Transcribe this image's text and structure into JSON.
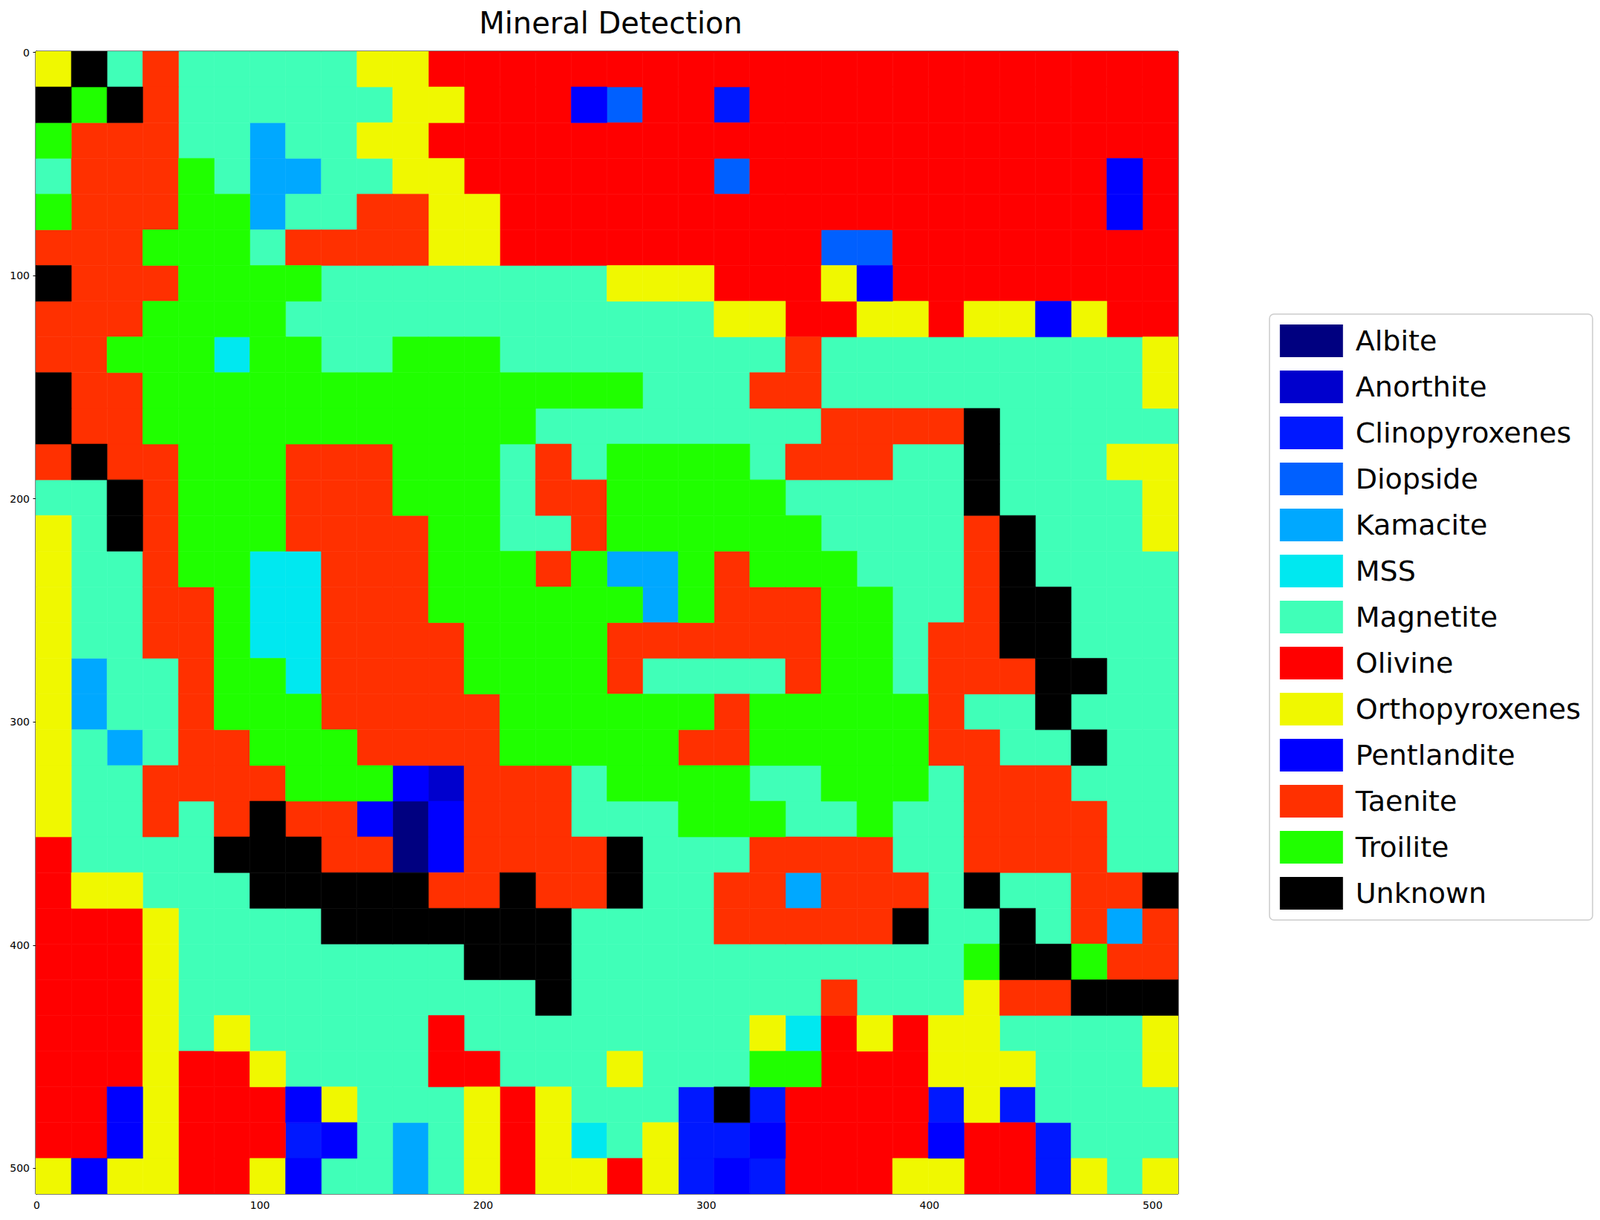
{
  "chart_data": {
    "type": "heatmap",
    "title": "Mineral Detection",
    "categories": [
      "Albite",
      "Anorthite",
      "Clinopyroxenes",
      "Diopside",
      "Kamacite",
      "MSS",
      "Magnetite",
      "Olivine",
      "Orthopyroxenes",
      "Pentlandite",
      "Taenite",
      "Troilite",
      "Unknown"
    ],
    "colors": [
      "#000080",
      "#0000cd",
      "#0018ff",
      "#0060ff",
      "#00a8ff",
      "#00e8f0",
      "#40ffb8",
      "#ff0000",
      "#f0f800",
      "#0000ff",
      "#ff3000",
      "#20ff00",
      "#000000"
    ],
    "x_edges": [
      -0.5,
      15.5,
      31.5,
      47.5,
      63.5,
      79.5,
      95.5,
      111.5,
      127.5,
      143.5,
      159.5,
      175.5,
      191.5,
      207.5,
      223.5,
      239.5,
      255.5,
      271.5,
      287.5,
      303.5,
      319.5,
      335.5,
      351.5,
      367.5,
      383.5,
      399.5,
      415.5,
      431.5,
      447.5,
      463.5,
      479.5,
      495.5,
      511.5
    ],
    "y_edges": [
      -0.5,
      15.5,
      31.5,
      47.5,
      63.5,
      79.5,
      95.5,
      111.5,
      127.5,
      143.5,
      159.5,
      175.5,
      191.5,
      207.5,
      223.5,
      239.5,
      255.5,
      271.5,
      287.5,
      303.5,
      319.5,
      335.5,
      351.5,
      367.5,
      383.5,
      399.5,
      415.5,
      431.5,
      447.5,
      463.5,
      479.5,
      495.5,
      511.5
    ],
    "cells": [
      [
        8,
        12,
        6,
        10,
        6,
        6,
        6,
        6,
        6,
        8,
        8,
        7,
        7,
        7,
        7,
        7,
        7,
        7,
        7,
        7,
        7,
        7,
        7,
        7,
        7,
        7,
        7,
        7,
        7,
        7,
        7,
        7
      ],
      [
        12,
        11,
        12,
        10,
        6,
        6,
        6,
        6,
        6,
        6,
        8,
        8,
        7,
        7,
        7,
        9,
        3,
        7,
        7,
        2,
        7,
        7,
        7,
        7,
        7,
        7,
        7,
        7,
        7,
        7,
        7,
        7
      ],
      [
        11,
        10,
        10,
        10,
        6,
        6,
        4,
        6,
        6,
        8,
        8,
        7,
        7,
        7,
        7,
        7,
        7,
        7,
        7,
        7,
        7,
        7,
        7,
        7,
        7,
        7,
        7,
        7,
        7,
        7,
        7,
        7
      ],
      [
        6,
        10,
        10,
        10,
        11,
        6,
        4,
        4,
        6,
        6,
        8,
        8,
        7,
        7,
        7,
        7,
        7,
        7,
        7,
        3,
        7,
        7,
        7,
        7,
        7,
        7,
        7,
        7,
        7,
        7,
        9,
        7
      ],
      [
        11,
        10,
        10,
        10,
        11,
        11,
        4,
        6,
        6,
        10,
        10,
        8,
        8,
        7,
        7,
        7,
        7,
        7,
        7,
        7,
        7,
        7,
        7,
        7,
        7,
        7,
        7,
        7,
        7,
        7,
        9,
        7
      ],
      [
        10,
        10,
        10,
        11,
        11,
        11,
        6,
        10,
        10,
        10,
        10,
        8,
        8,
        7,
        7,
        7,
        7,
        7,
        7,
        7,
        7,
        7,
        3,
        3,
        7,
        7,
        7,
        7,
        7,
        7,
        7,
        7
      ],
      [
        12,
        10,
        10,
        10,
        11,
        11,
        11,
        11,
        6,
        6,
        6,
        6,
        6,
        6,
        6,
        6,
        8,
        8,
        8,
        7,
        7,
        7,
        8,
        9,
        7,
        7,
        7,
        7,
        7,
        7,
        7,
        7
      ],
      [
        10,
        10,
        10,
        11,
        11,
        11,
        11,
        6,
        6,
        6,
        6,
        6,
        6,
        6,
        6,
        6,
        6,
        6,
        6,
        8,
        8,
        7,
        7,
        8,
        8,
        7,
        8,
        8,
        9,
        8,
        7,
        7
      ],
      [
        10,
        10,
        11,
        11,
        11,
        5,
        11,
        11,
        6,
        6,
        11,
        11,
        11,
        6,
        6,
        6,
        6,
        6,
        6,
        6,
        6,
        10,
        6,
        6,
        6,
        6,
        6,
        6,
        6,
        6,
        6,
        8
      ],
      [
        12,
        10,
        10,
        11,
        11,
        11,
        11,
        11,
        11,
        11,
        11,
        11,
        11,
        11,
        11,
        11,
        11,
        6,
        6,
        6,
        10,
        10,
        6,
        6,
        6,
        6,
        6,
        6,
        6,
        6,
        6,
        8
      ],
      [
        12,
        10,
        10,
        11,
        11,
        11,
        11,
        11,
        11,
        11,
        11,
        11,
        11,
        11,
        6,
        6,
        6,
        6,
        6,
        6,
        6,
        6,
        10,
        10,
        10,
        10,
        12,
        6,
        6,
        6,
        6,
        6
      ],
      [
        10,
        12,
        10,
        10,
        11,
        11,
        11,
        10,
        10,
        10,
        11,
        11,
        11,
        6,
        10,
        6,
        11,
        11,
        11,
        11,
        6,
        10,
        10,
        10,
        6,
        6,
        12,
        6,
        6,
        6,
        8,
        8
      ],
      [
        6,
        6,
        12,
        10,
        11,
        11,
        11,
        10,
        10,
        10,
        11,
        11,
        11,
        6,
        10,
        10,
        11,
        11,
        11,
        11,
        11,
        6,
        6,
        6,
        6,
        6,
        12,
        6,
        6,
        6,
        6,
        8
      ],
      [
        8,
        6,
        12,
        10,
        11,
        11,
        11,
        10,
        10,
        10,
        10,
        11,
        11,
        6,
        6,
        10,
        11,
        11,
        11,
        11,
        11,
        11,
        6,
        6,
        6,
        6,
        10,
        12,
        6,
        6,
        6,
        8
      ],
      [
        8,
        6,
        6,
        10,
        11,
        11,
        5,
        5,
        10,
        10,
        10,
        11,
        11,
        11,
        10,
        11,
        4,
        4,
        11,
        10,
        11,
        11,
        11,
        6,
        6,
        6,
        10,
        12,
        6,
        6,
        6,
        6
      ],
      [
        8,
        6,
        6,
        10,
        10,
        11,
        5,
        5,
        10,
        10,
        10,
        11,
        11,
        11,
        11,
        11,
        11,
        4,
        11,
        10,
        10,
        10,
        11,
        11,
        6,
        6,
        10,
        12,
        12,
        6,
        6,
        6
      ],
      [
        8,
        6,
        6,
        10,
        10,
        11,
        5,
        5,
        10,
        10,
        10,
        10,
        11,
        11,
        11,
        11,
        10,
        10,
        10,
        10,
        10,
        10,
        11,
        11,
        6,
        10,
        10,
        12,
        12,
        6,
        6,
        6
      ],
      [
        8,
        4,
        6,
        6,
        10,
        11,
        11,
        5,
        10,
        10,
        10,
        10,
        11,
        11,
        11,
        11,
        10,
        6,
        6,
        6,
        6,
        10,
        11,
        11,
        6,
        10,
        10,
        10,
        12,
        12,
        6,
        6
      ],
      [
        8,
        4,
        6,
        6,
        10,
        11,
        11,
        11,
        10,
        10,
        10,
        10,
        10,
        11,
        11,
        11,
        11,
        11,
        11,
        10,
        11,
        11,
        11,
        11,
        11,
        10,
        6,
        6,
        12,
        6,
        6,
        6
      ],
      [
        8,
        6,
        4,
        6,
        10,
        10,
        11,
        11,
        11,
        10,
        10,
        10,
        10,
        11,
        11,
        11,
        11,
        11,
        10,
        10,
        11,
        11,
        11,
        11,
        11,
        10,
        10,
        6,
        6,
        12,
        6,
        6
      ],
      [
        8,
        6,
        6,
        10,
        10,
        10,
        10,
        11,
        11,
        11,
        9,
        1,
        10,
        10,
        10,
        6,
        11,
        11,
        11,
        11,
        6,
        6,
        11,
        11,
        11,
        6,
        10,
        10,
        10,
        6,
        6,
        6
      ],
      [
        8,
        6,
        6,
        10,
        6,
        10,
        12,
        10,
        10,
        9,
        0,
        9,
        10,
        10,
        10,
        6,
        6,
        6,
        11,
        11,
        11,
        6,
        6,
        11,
        6,
        6,
        10,
        10,
        10,
        10,
        6,
        6
      ],
      [
        7,
        6,
        6,
        6,
        6,
        12,
        12,
        12,
        10,
        10,
        0,
        9,
        10,
        10,
        10,
        10,
        12,
        6,
        6,
        6,
        10,
        10,
        10,
        10,
        6,
        6,
        10,
        10,
        10,
        10,
        6,
        6
      ],
      [
        7,
        8,
        8,
        6,
        6,
        6,
        12,
        12,
        12,
        12,
        12,
        10,
        10,
        12,
        10,
        10,
        12,
        6,
        6,
        10,
        10,
        4,
        10,
        10,
        10,
        6,
        12,
        6,
        6,
        10,
        10,
        12
      ],
      [
        7,
        7,
        7,
        8,
        6,
        6,
        6,
        6,
        12,
        12,
        12,
        12,
        12,
        12,
        12,
        6,
        6,
        6,
        6,
        10,
        10,
        10,
        10,
        10,
        12,
        6,
        6,
        12,
        6,
        10,
        4,
        10
      ],
      [
        7,
        7,
        7,
        8,
        6,
        6,
        6,
        6,
        6,
        6,
        6,
        6,
        12,
        12,
        12,
        6,
        6,
        6,
        6,
        6,
        6,
        6,
        6,
        6,
        6,
        6,
        11,
        12,
        12,
        11,
        10,
        10
      ],
      [
        7,
        7,
        7,
        8,
        6,
        6,
        6,
        6,
        6,
        6,
        6,
        6,
        6,
        6,
        12,
        6,
        6,
        6,
        6,
        6,
        6,
        6,
        10,
        6,
        6,
        6,
        8,
        10,
        10,
        12,
        12,
        12
      ],
      [
        7,
        7,
        7,
        8,
        6,
        8,
        6,
        6,
        6,
        6,
        6,
        7,
        6,
        6,
        6,
        6,
        6,
        6,
        6,
        6,
        8,
        5,
        7,
        8,
        7,
        8,
        8,
        6,
        6,
        6,
        6,
        8
      ],
      [
        7,
        7,
        7,
        8,
        7,
        7,
        8,
        6,
        6,
        6,
        6,
        7,
        7,
        6,
        6,
        6,
        8,
        6,
        6,
        6,
        11,
        11,
        7,
        7,
        7,
        8,
        8,
        8,
        6,
        6,
        6,
        8
      ],
      [
        7,
        7,
        9,
        8,
        7,
        7,
        7,
        9,
        8,
        6,
        6,
        6,
        8,
        7,
        8,
        6,
        6,
        6,
        2,
        12,
        2,
        7,
        7,
        7,
        7,
        2,
        8,
        2,
        6,
        6,
        6,
        6
      ],
      [
        7,
        7,
        9,
        8,
        7,
        7,
        7,
        2,
        9,
        6,
        4,
        6,
        8,
        7,
        8,
        5,
        6,
        8,
        2,
        2,
        9,
        7,
        7,
        7,
        7,
        9,
        7,
        7,
        2,
        6,
        6,
        6
      ],
      [
        8,
        9,
        8,
        8,
        7,
        7,
        8,
        9,
        6,
        6,
        4,
        6,
        8,
        7,
        8,
        8,
        7,
        8,
        2,
        9,
        2,
        7,
        7,
        7,
        8,
        8,
        7,
        7,
        2,
        8,
        6,
        8
      ]
    ],
    "xlim": [
      -0.5,
      511.5
    ],
    "ylim": [
      511.5,
      -0.5
    ],
    "xticks": [
      0,
      100,
      200,
      300,
      400,
      500
    ],
    "yticks": [
      0,
      100,
      200,
      300,
      400,
      500
    ],
    "grid": false,
    "legend": "right"
  }
}
